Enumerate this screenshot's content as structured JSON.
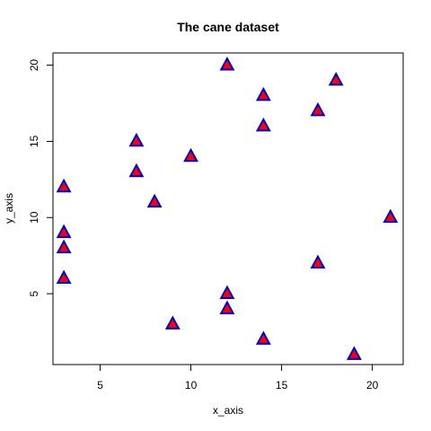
{
  "chart_data": {
    "type": "scatter",
    "title": "The cane dataset",
    "xlabel": "x_axis",
    "ylabel": "y_axis",
    "xlim": [
      2.4,
      21.7
    ],
    "ylim": [
      0.35,
      20.8
    ],
    "xticks": [
      5,
      10,
      15,
      20
    ],
    "yticks": [
      5,
      10,
      15,
      20
    ],
    "grid": false,
    "legend": "none",
    "marker": {
      "shape": "triangle",
      "fill": "#ff0000",
      "stroke": "#0000cc"
    },
    "points": [
      {
        "x": 3,
        "y": 12
      },
      {
        "x": 3,
        "y": 9
      },
      {
        "x": 3,
        "y": 8
      },
      {
        "x": 3,
        "y": 6
      },
      {
        "x": 7,
        "y": 15
      },
      {
        "x": 7,
        "y": 13
      },
      {
        "x": 8,
        "y": 11
      },
      {
        "x": 9,
        "y": 3
      },
      {
        "x": 10,
        "y": 14
      },
      {
        "x": 12,
        "y": 20
      },
      {
        "x": 12,
        "y": 5
      },
      {
        "x": 12,
        "y": 4
      },
      {
        "x": 14,
        "y": 18
      },
      {
        "x": 14,
        "y": 16
      },
      {
        "x": 14,
        "y": 2
      },
      {
        "x": 17,
        "y": 17
      },
      {
        "x": 17,
        "y": 7
      },
      {
        "x": 18,
        "y": 19
      },
      {
        "x": 19,
        "y": 1
      },
      {
        "x": 21,
        "y": 10
      }
    ]
  }
}
